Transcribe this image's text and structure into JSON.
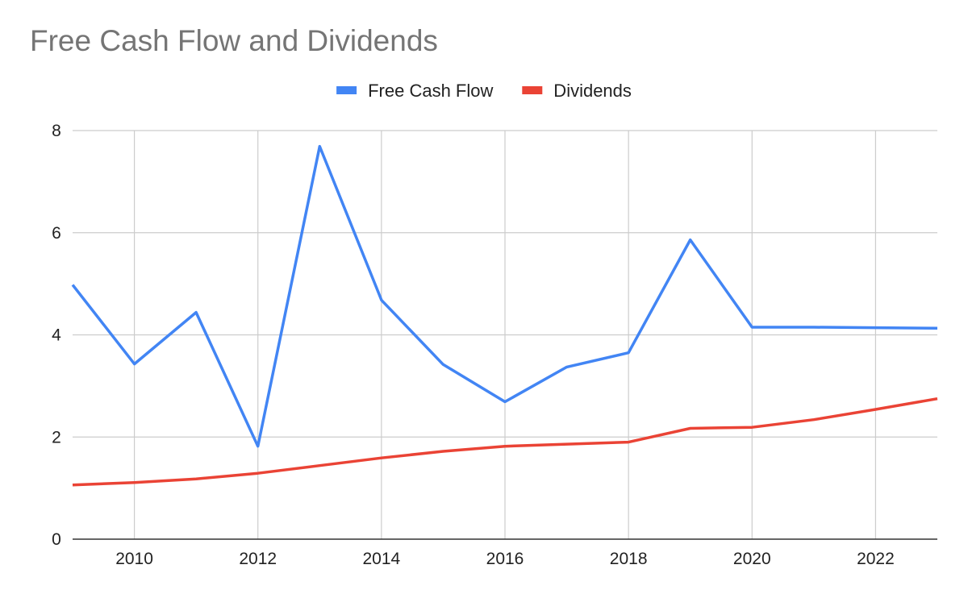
{
  "chart_data": {
    "type": "line",
    "title": "Free Cash Flow and Dividends",
    "xlabel": "",
    "ylabel": "",
    "x": [
      2009,
      2010,
      2011,
      2012,
      2013,
      2014,
      2015,
      2016,
      2017,
      2018,
      2019,
      2020,
      2021,
      2022,
      2023
    ],
    "xlim": [
      2009,
      2023
    ],
    "ylim": [
      0,
      8
    ],
    "x_ticks": [
      "2010",
      "2012",
      "2014",
      "2016",
      "2018",
      "2020",
      "2022"
    ],
    "y_ticks": [
      "0",
      "2",
      "4",
      "6",
      "8"
    ],
    "grid": true,
    "legend_position": "top",
    "series": [
      {
        "name": "Free Cash Flow",
        "color": "#4285f4",
        "values": [
          4.98,
          3.43,
          4.44,
          1.82,
          7.69,
          4.68,
          3.42,
          2.69,
          3.37,
          3.65,
          5.86,
          4.15,
          4.15,
          4.14,
          4.13
        ]
      },
      {
        "name": "Dividends",
        "color": "#ea4335",
        "values": [
          1.06,
          1.11,
          1.18,
          1.29,
          1.44,
          1.59,
          1.72,
          1.82,
          1.86,
          1.9,
          2.17,
          2.19,
          2.34,
          2.54,
          2.75
        ]
      }
    ]
  }
}
